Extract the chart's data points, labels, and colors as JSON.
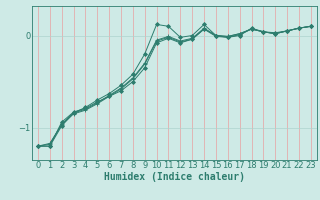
{
  "xlabel": "Humidex (Indice chaleur)",
  "bg_color": "#ceeae6",
  "line_color": "#2d7d6e",
  "xlim": [
    -0.5,
    23.5
  ],
  "ylim": [
    -1.35,
    0.32
  ],
  "yticks": [
    -1,
    0
  ],
  "xticks": [
    0,
    1,
    2,
    3,
    4,
    5,
    6,
    7,
    8,
    9,
    10,
    11,
    12,
    13,
    14,
    15,
    16,
    17,
    18,
    19,
    20,
    21,
    22,
    23
  ],
  "series": [
    {
      "x": [
        0,
        1,
        2,
        3,
        4,
        5,
        6,
        7,
        8,
        9,
        10,
        11,
        12,
        13,
        14,
        15,
        16,
        17,
        18,
        19,
        20,
        21,
        22,
        23
      ],
      "y": [
        -1.2,
        -1.2,
        -0.98,
        -0.84,
        -0.78,
        -0.7,
        -0.63,
        -0.54,
        -0.42,
        -0.2,
        0.12,
        0.1,
        -0.02,
        0.0,
        0.12,
        0.0,
        -0.02,
        0.0,
        0.08,
        0.04,
        0.03,
        0.05,
        0.08,
        0.1
      ],
      "marker": "D",
      "ms": 2.0,
      "lw": 0.7,
      "ls": "-"
    },
    {
      "x": [
        0,
        1,
        2,
        3,
        4,
        5,
        6,
        7,
        8,
        9,
        10,
        11,
        12,
        13,
        14,
        15,
        16,
        17,
        18,
        19,
        20,
        21,
        22,
        23
      ],
      "y": [
        -1.2,
        -1.2,
        -0.94,
        -0.83,
        -0.79,
        -0.72,
        -0.66,
        -0.6,
        -0.5,
        -0.35,
        -0.08,
        -0.03,
        -0.08,
        -0.04,
        0.07,
        -0.01,
        -0.02,
        0.01,
        0.07,
        0.04,
        0.02,
        0.05,
        0.08,
        0.1
      ],
      "marker": "D",
      "ms": 2.0,
      "lw": 0.7,
      "ls": "-"
    },
    {
      "x": [
        0,
        1,
        2,
        3,
        4,
        5,
        6,
        7,
        8,
        9,
        10,
        11,
        12,
        13,
        14,
        15,
        16,
        17,
        18,
        19,
        20,
        21,
        22,
        23
      ],
      "y": [
        -1.2,
        -1.18,
        -0.96,
        -0.84,
        -0.8,
        -0.73,
        -0.65,
        -0.57,
        -0.46,
        -0.3,
        -0.05,
        -0.01,
        -0.06,
        -0.03,
        0.08,
        0.0,
        -0.01,
        0.02,
        0.07,
        0.04,
        0.02,
        0.05,
        0.08,
        0.1
      ],
      "marker": "+",
      "ms": 3.5,
      "lw": 0.7,
      "ls": "-"
    },
    {
      "x": [
        0,
        1,
        2,
        3,
        4,
        5,
        6,
        7,
        8,
        9,
        10,
        11,
        12,
        13,
        14,
        15,
        16,
        17,
        18,
        19,
        20,
        21,
        22,
        23
      ],
      "y": [
        -1.2,
        -1.17,
        -0.97,
        -0.85,
        -0.81,
        -0.74,
        -0.66,
        -0.58,
        -0.47,
        -0.31,
        -0.06,
        -0.02,
        -0.07,
        -0.04,
        0.07,
        0.0,
        -0.01,
        0.02,
        0.07,
        0.04,
        0.02,
        0.05,
        0.08,
        0.1
      ],
      "marker": "+",
      "ms": 3.5,
      "lw": 0.7,
      "ls": "-"
    }
  ],
  "grid_color": "#aed4ce",
  "tick_fontsize": 6.0,
  "label_fontsize": 7.0
}
